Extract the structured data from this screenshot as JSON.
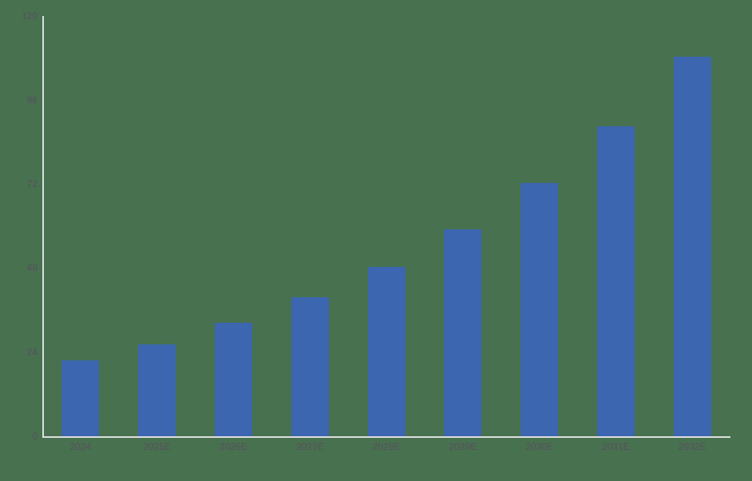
{
  "chart_data": {
    "type": "bar",
    "title": "",
    "xlabel": "",
    "ylabel": "",
    "categories": [
      "2024",
      "2025E",
      "2026E",
      "2027E",
      "2028E",
      "2029E",
      "2030E",
      "2031E",
      "2032E"
    ],
    "values": [
      21.6,
      26.3,
      32.3,
      39.6,
      48.4,
      59.1,
      72.2,
      88.4,
      108.2
    ],
    "ylim": [
      0,
      120
    ],
    "yticks": [
      0,
      24,
      48,
      72,
      96,
      120
    ],
    "grid": false,
    "legend": false,
    "colors": {
      "background": "#48714F",
      "bar": "#3C66B0",
      "tick_text": "#57505E",
      "axis_line": "#DCE0DE"
    }
  }
}
